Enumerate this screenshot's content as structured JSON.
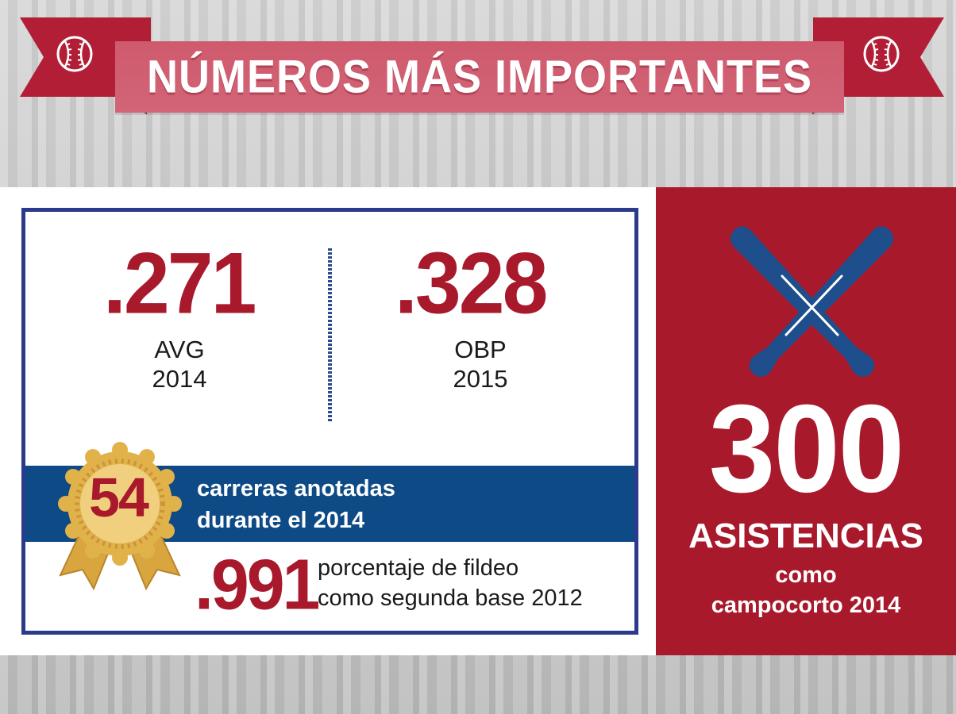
{
  "header": {
    "title": "NÚMEROS MÁS IMPORTANTES"
  },
  "stats": {
    "avg": {
      "value": ".271",
      "label": "AVG",
      "year": "2014"
    },
    "obp": {
      "value": ".328",
      "label": "OBP",
      "year": "2015"
    },
    "runs": {
      "value": "54",
      "line1": "carreras anotadas",
      "line2": "durante el 2014"
    },
    "fielding": {
      "value": ".991",
      "line1": "porcentaje de fildeo",
      "line2": "como segunda base 2012"
    }
  },
  "assists": {
    "value": "300",
    "label": "ASISTENCIAS",
    "line1": "como",
    "line2": "campocorto 2014"
  },
  "colors": {
    "red": "#a8192c",
    "banner_pink": "#cf5a6d",
    "navy": "#2c3a8c",
    "band_blue": "#0d4a86",
    "gold": "#e2b24a",
    "bat_blue": "#1f4e8c"
  },
  "icons": [
    "baseball-icon",
    "crossed-bats-icon",
    "gold-medal-icon"
  ]
}
